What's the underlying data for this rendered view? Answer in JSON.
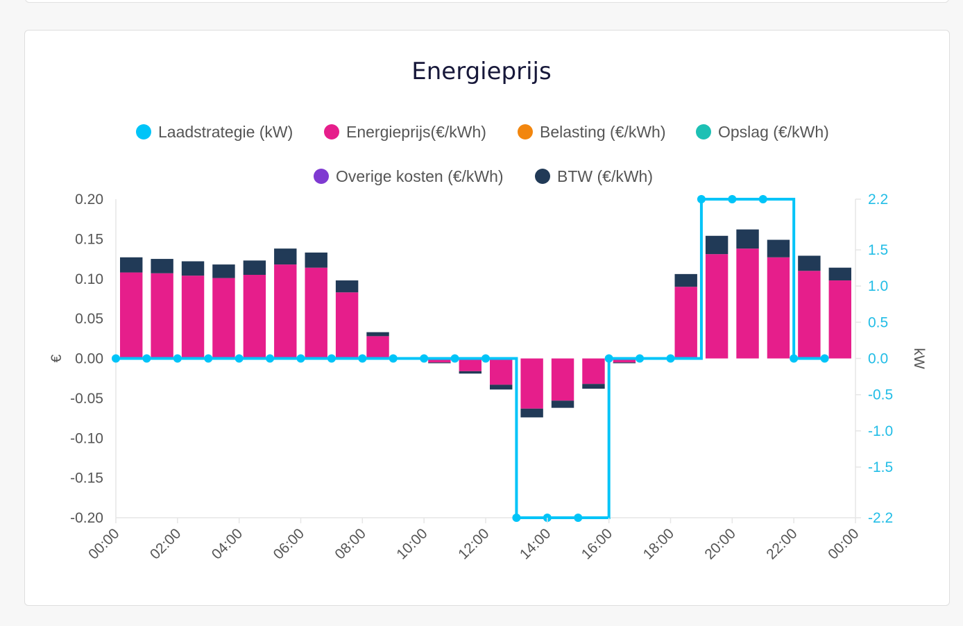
{
  "colors": {
    "laadstrategie": "#00c4f8",
    "energieprijs": "#e61e8b",
    "belasting": "#f2860e",
    "opslag": "#1dc0b4",
    "overige": "#7f3ad1",
    "btw": "#213a57"
  },
  "chart_data": {
    "type": "bar",
    "title": "Energieprijs",
    "legend": [
      {
        "name": "Laadstrategie (kW)",
        "color": "#00c4f8"
      },
      {
        "name": "Energieprijs(€/kWh)",
        "color": "#e61e8b"
      },
      {
        "name": "Belasting (€/kWh)",
        "color": "#f2860e"
      },
      {
        "name": "Opslag (€/kWh)",
        "color": "#1dc0b4"
      },
      {
        "name": "Overige kosten (€/kWh)",
        "color": "#7f3ad1"
      },
      {
        "name": "BTW (€/kWh)",
        "color": "#213a57"
      }
    ],
    "x_ticks": [
      "00:00",
      "02:00",
      "04:00",
      "06:00",
      "08:00",
      "10:00",
      "12:00",
      "14:00",
      "16:00",
      "18:00",
      "20:00",
      "22:00",
      "00:00"
    ],
    "y_left": {
      "label": "€",
      "min": -0.2,
      "max": 0.2,
      "ticks": [
        "0.20",
        "0.15",
        "0.10",
        "0.05",
        "0.00",
        "-0.05",
        "-0.10",
        "-0.15",
        "-0.20"
      ]
    },
    "y_right": {
      "label": "kW",
      "min": -2.2,
      "max": 2.2,
      "ticks": [
        "2.2",
        "1.5",
        "1.0",
        "0.5",
        "0.0",
        "-0.5",
        "-1.0",
        "-1.5",
        "-2.2"
      ],
      "tick_values": [
        2.2,
        1.5,
        1.0,
        0.5,
        0.0,
        -0.5,
        -1.0,
        -1.5,
        -2.2
      ]
    },
    "hours": [
      0,
      1,
      2,
      3,
      4,
      5,
      6,
      7,
      8,
      9,
      10,
      11,
      12,
      13,
      14,
      15,
      16,
      17,
      18,
      19,
      20,
      21,
      22,
      23
    ],
    "energieprijs": [
      0.108,
      0.107,
      0.104,
      0.101,
      0.105,
      0.118,
      0.114,
      0.083,
      0.028,
      0.0,
      -0.005,
      -0.016,
      -0.033,
      -0.063,
      -0.053,
      -0.032,
      -0.005,
      0.0,
      0.09,
      0.131,
      0.138,
      0.127,
      0.11,
      0.098
    ],
    "btw": [
      0.019,
      0.018,
      0.018,
      0.017,
      0.018,
      0.02,
      0.019,
      0.015,
      0.005,
      0.0,
      -0.001,
      -0.003,
      -0.006,
      -0.011,
      -0.009,
      -0.006,
      -0.001,
      0.0,
      0.016,
      0.023,
      0.024,
      0.022,
      0.019,
      0.016
    ],
    "laadstrategie": [
      0,
      0,
      0,
      0,
      0,
      0,
      0,
      0,
      0,
      0,
      0,
      0,
      0,
      -2.2,
      -2.2,
      -2.2,
      0,
      0,
      0,
      2.2,
      2.2,
      2.2,
      0,
      0
    ],
    "laadstrategie_marker_hours": [
      0,
      1,
      2,
      3,
      4,
      5,
      6,
      7,
      8,
      9,
      10,
      11,
      12,
      13,
      14,
      15,
      16,
      17,
      18,
      19,
      20,
      21,
      22,
      23
    ]
  }
}
